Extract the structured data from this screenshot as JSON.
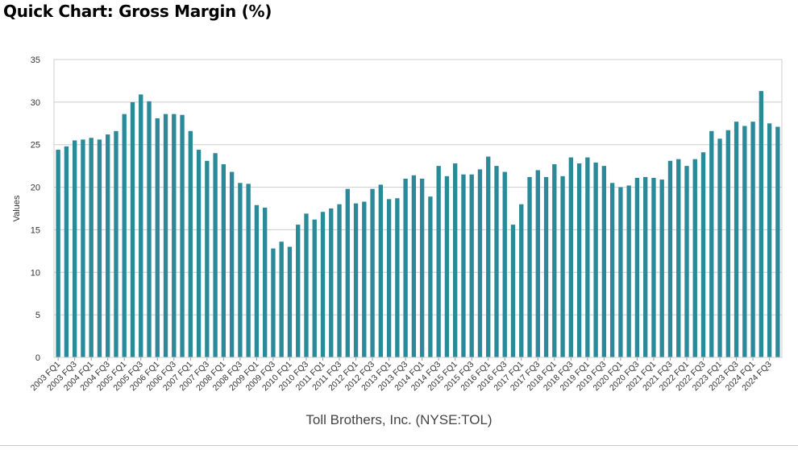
{
  "title": "Quick Chart: Gross Margin (%)",
  "source": "Toll Brothers, Inc. (NYSE:TOL)",
  "colors": {
    "bar": "#2a8a99",
    "grid": "#cccccc",
    "axis_text": "#333333"
  },
  "chart_data": {
    "type": "bar",
    "ylabel": "Values",
    "xlabel": "",
    "ylim": [
      0,
      35
    ],
    "yticks": [
      0,
      5,
      10,
      15,
      20,
      25,
      30,
      35
    ],
    "grid": true,
    "categories": [
      "2003 FQ1",
      "2003 FQ2",
      "2003 FQ3",
      "2003 FQ4",
      "2004 FQ1",
      "2004 FQ2",
      "2004 FQ3",
      "2004 FQ4",
      "2005 FQ1",
      "2005 FQ2",
      "2005 FQ3",
      "2005 FQ4",
      "2006 FQ1",
      "2006 FQ2",
      "2006 FQ3",
      "2006 FQ4",
      "2007 FQ1",
      "2007 FQ2",
      "2007 FQ3",
      "2007 FQ4",
      "2008 FQ1",
      "2008 FQ2",
      "2008 FQ3",
      "2008 FQ4",
      "2009 FQ1",
      "2009 FQ2",
      "2009 FQ3",
      "2009 FQ4",
      "2010 FQ1",
      "2010 FQ2",
      "2010 FQ3",
      "2010 FQ4",
      "2011 FQ1",
      "2011 FQ2",
      "2011 FQ3",
      "2011 FQ4",
      "2012 FQ1",
      "2012 FQ2",
      "2012 FQ3",
      "2012 FQ4",
      "2013 FQ1",
      "2013 FQ2",
      "2013 FQ3",
      "2013 FQ4",
      "2014 FQ1",
      "2014 FQ2",
      "2014 FQ3",
      "2014 FQ4",
      "2015 FQ1",
      "2015 FQ2",
      "2015 FQ3",
      "2015 FQ4",
      "2016 FQ1",
      "2016 FQ2",
      "2016 FQ3",
      "2016 FQ4",
      "2017 FQ1",
      "2017 FQ2",
      "2017 FQ3",
      "2017 FQ4",
      "2018 FQ1",
      "2018 FQ2",
      "2018 FQ3",
      "2018 FQ4",
      "2019 FQ1",
      "2019 FQ2",
      "2019 FQ3",
      "2019 FQ4",
      "2020 FQ1",
      "2020 FQ2",
      "2020 FQ3",
      "2020 FQ4",
      "2021 FQ1",
      "2021 FQ2",
      "2021 FQ3",
      "2021 FQ4",
      "2022 FQ1",
      "2022 FQ2",
      "2022 FQ3",
      "2022 FQ4",
      "2023 FQ1",
      "2023 FQ2",
      "2023 FQ3",
      "2023 FQ4",
      "2024 FQ1",
      "2024 FQ2",
      "2024 FQ3",
      "2024 FQ4"
    ],
    "tick_labels": [
      "2003 FQ1",
      "2003 FQ3",
      "2004 FQ1",
      "2004 FQ3",
      "2005 FQ1",
      "2005 FQ3",
      "2006 FQ1",
      "2006 FQ3",
      "2007 FQ1",
      "2007 FQ3",
      "2008 FQ1",
      "2008 FQ3",
      "2009 FQ1",
      "2009 FQ3",
      "2010 FQ1",
      "2010 FQ3",
      "2011 FQ1",
      "2011 FQ3",
      "2012 FQ1",
      "2012 FQ3",
      "2013 FQ1",
      "2013 FQ3",
      "2014 FQ1",
      "2014 FQ3",
      "2015 FQ1",
      "2015 FQ3",
      "2016 FQ1",
      "2016 FQ3",
      "2017 FQ1",
      "2017 FQ3",
      "2018 FQ1",
      "2018 FQ3",
      "2019 FQ1",
      "2019 FQ3",
      "2020 FQ1",
      "2020 FQ3",
      "2021 FQ1",
      "2021 FQ3",
      "2022 FQ1",
      "2022 FQ3",
      "2023 FQ1",
      "2023 FQ3",
      "2024 FQ1",
      "2024 FQ3"
    ],
    "series": [
      {
        "values": [
          24.4,
          24.8,
          25.5,
          25.6,
          25.8,
          25.6,
          26.2,
          26.6,
          28.6,
          30.0,
          30.9,
          30.1,
          28.1,
          28.6,
          28.6,
          28.5,
          26.6,
          24.4,
          23.1,
          24.0,
          22.7,
          21.8,
          20.5,
          20.4,
          17.9,
          17.6,
          12.8,
          13.6,
          13.0,
          15.6,
          16.9,
          16.2,
          17.1,
          17.5,
          18.0,
          19.8,
          18.1,
          18.3,
          19.8,
          20.3,
          18.6,
          18.7,
          21.0,
          21.4,
          21.0,
          18.9,
          22.5,
          21.3,
          22.8,
          21.5,
          21.5,
          22.1,
          23.6,
          22.5,
          21.8,
          15.6,
          18.0,
          21.2,
          22.0,
          21.2,
          22.7,
          21.3,
          23.5,
          22.8,
          23.5,
          22.9,
          22.5,
          20.5,
          20.0,
          20.2,
          21.1,
          21.2,
          21.1,
          20.9,
          23.1,
          23.3,
          22.5,
          23.3,
          24.1,
          26.6,
          25.7,
          26.7,
          27.7,
          27.2,
          27.7,
          31.3,
          27.5,
          27.1
        ]
      }
    ]
  }
}
